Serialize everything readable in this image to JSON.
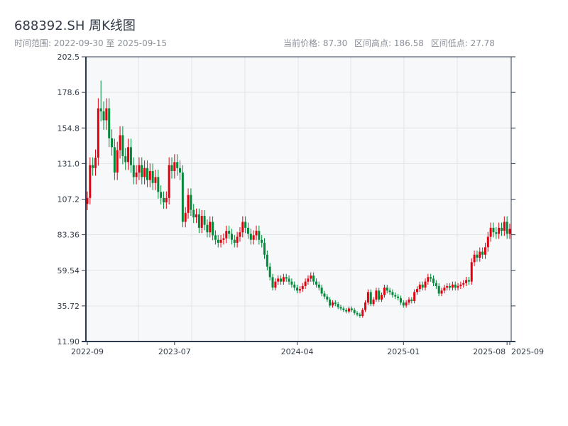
{
  "header": {
    "title": "688392.SH 周K线图",
    "range": "时间范围: 2022-09-30 至 2025-09-15",
    "current_price": "当前价格: 87.30",
    "period_high": "区间高点: 186.58",
    "period_low": "区间低点: 27.78"
  },
  "colors": {
    "up": "#e0000e",
    "down": "#008a3a",
    "axis": "#2e3b4e",
    "grid": "#e1e4ea",
    "plot_bg": "#f7f8fa"
  },
  "chart_data": {
    "type": "candlestick",
    "title": "688392.SH 周K线图",
    "xlabel": "",
    "ylabel": "",
    "ylim": [
      11.9,
      202.5
    ],
    "yticks": [
      "202.5",
      "178.6",
      "154.8",
      "131.0",
      "107.2",
      "83.36",
      "59.54",
      "35.72",
      "11.90"
    ],
    "xticks": [
      {
        "label": "2022-09",
        "index": 0
      },
      {
        "label": "2023-07",
        "index": 32
      },
      {
        "label": "2024-04",
        "index": 77
      },
      {
        "label": "2025-01",
        "index": 116
      },
      {
        "label": "2025-08",
        "index": 154
      },
      {
        "label": "2025-09",
        "index": 155
      }
    ],
    "grid": true,
    "first_open": 104,
    "close": [
      108,
      130,
      128,
      135,
      168,
      166,
      160,
      168,
      148,
      142,
      125,
      140,
      150,
      136,
      132,
      142,
      130,
      122,
      125,
      130,
      122,
      128,
      120,
      126,
      118,
      122,
      112,
      108,
      105,
      108,
      130,
      126,
      132,
      128,
      125,
      92,
      98,
      110,
      100,
      95,
      97,
      88,
      96,
      90,
      85,
      92,
      83,
      80,
      78,
      80,
      81,
      86,
      84,
      80,
      78,
      82,
      85,
      92,
      88,
      84,
      80,
      83,
      86,
      80,
      78,
      70,
      62,
      55,
      48,
      52,
      54,
      52,
      55,
      54,
      52,
      50,
      48,
      46,
      47,
      49,
      52,
      54,
      56,
      52,
      50,
      48,
      44,
      42,
      40,
      36,
      38,
      37,
      35,
      34,
      33,
      32,
      34,
      33,
      31,
      30,
      29,
      33,
      38,
      45,
      37,
      40,
      46,
      40,
      43,
      48,
      46,
      45,
      43,
      42,
      41,
      38,
      36,
      38,
      40,
      39,
      45,
      47,
      50,
      48,
      52,
      55,
      54,
      51,
      49,
      44,
      46,
      48,
      49,
      48,
      50,
      48,
      49,
      50,
      51,
      53,
      52,
      65,
      70,
      68,
      72,
      70,
      75,
      82,
      88,
      85,
      84,
      88,
      86,
      92,
      84,
      87.3
    ],
    "high_index": 5,
    "high_value": 186.58,
    "low_index": 100,
    "low_value": 27.78
  }
}
